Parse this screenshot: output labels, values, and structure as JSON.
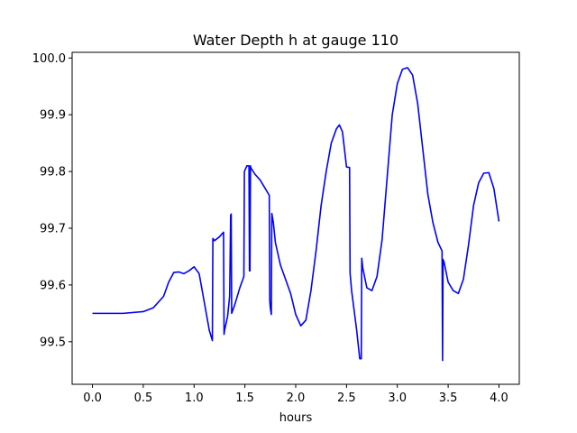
{
  "chart_data": {
    "type": "line",
    "title": "Water Depth h at gauge 110",
    "xlabel": "hours",
    "ylabel": "",
    "xlim": [
      -0.2,
      4.2
    ],
    "ylim": [
      99.425,
      100.01
    ],
    "xticks": [
      0.0,
      0.5,
      1.0,
      1.5,
      2.0,
      2.5,
      3.0,
      3.5,
      4.0
    ],
    "xtick_labels": [
      "0.0",
      "0.5",
      "1.0",
      "1.5",
      "2.0",
      "2.5",
      "3.0",
      "3.5",
      "4.0"
    ],
    "yticks": [
      99.5,
      99.6,
      99.7,
      99.8,
      99.9,
      100.0
    ],
    "ytick_labels": [
      "99.5",
      "99.6",
      "99.7",
      "99.8",
      "99.9",
      "100.0"
    ],
    "grid": false,
    "series": [
      {
        "color": "#0000ff",
        "x": [
          0.0,
          0.3,
          0.5,
          0.6,
          0.7,
          0.75,
          0.8,
          0.85,
          0.9,
          0.95,
          1.0,
          1.05,
          1.1,
          1.15,
          1.18,
          1.185,
          1.2,
          1.25,
          1.29,
          1.295,
          1.3,
          1.33,
          1.35,
          1.36,
          1.365,
          1.37,
          1.4,
          1.45,
          1.49,
          1.495,
          1.52,
          1.54,
          1.545,
          1.55,
          1.555,
          1.56,
          1.6,
          1.65,
          1.7,
          1.74,
          1.745,
          1.75,
          1.76,
          1.765,
          1.78,
          1.8,
          1.85,
          1.9,
          1.95,
          2.0,
          2.05,
          2.1,
          2.15,
          2.2,
          2.25,
          2.3,
          2.35,
          2.4,
          2.43,
          2.46,
          2.5,
          2.53,
          2.535,
          2.55,
          2.6,
          2.63,
          2.645,
          2.65,
          2.66,
          2.7,
          2.75,
          2.8,
          2.85,
          2.9,
          2.95,
          3.0,
          3.05,
          3.1,
          3.15,
          3.2,
          3.25,
          3.3,
          3.35,
          3.4,
          3.44,
          3.445,
          3.45,
          3.46,
          3.5,
          3.55,
          3.6,
          3.65,
          3.7,
          3.75,
          3.8,
          3.85,
          3.9,
          3.95,
          4.0
        ],
        "y": [
          99.55,
          99.55,
          99.553,
          99.56,
          99.58,
          99.605,
          99.622,
          99.623,
          99.62,
          99.625,
          99.632,
          99.62,
          99.57,
          99.52,
          99.502,
          99.682,
          99.678,
          99.685,
          99.693,
          99.513,
          99.52,
          99.545,
          99.58,
          99.723,
          99.725,
          99.55,
          99.565,
          99.595,
          99.615,
          99.8,
          99.81,
          99.81,
          99.625,
          99.625,
          99.81,
          99.806,
          99.795,
          99.785,
          99.77,
          99.758,
          99.572,
          99.56,
          99.548,
          99.726,
          99.71,
          99.675,
          99.635,
          99.61,
          99.585,
          99.548,
          99.528,
          99.538,
          99.59,
          99.66,
          99.74,
          99.8,
          99.85,
          99.875,
          99.882,
          99.87,
          99.808,
          99.807,
          99.621,
          99.59,
          99.52,
          99.47,
          99.47,
          99.647,
          99.63,
          99.595,
          99.59,
          99.615,
          99.68,
          99.79,
          99.9,
          99.955,
          99.98,
          99.983,
          99.97,
          99.92,
          99.84,
          99.76,
          99.71,
          99.675,
          99.66,
          99.467,
          99.645,
          99.64,
          99.605,
          99.59,
          99.585,
          99.61,
          99.67,
          99.74,
          99.78,
          99.797,
          99.798,
          99.77,
          99.712
        ]
      }
    ]
  }
}
